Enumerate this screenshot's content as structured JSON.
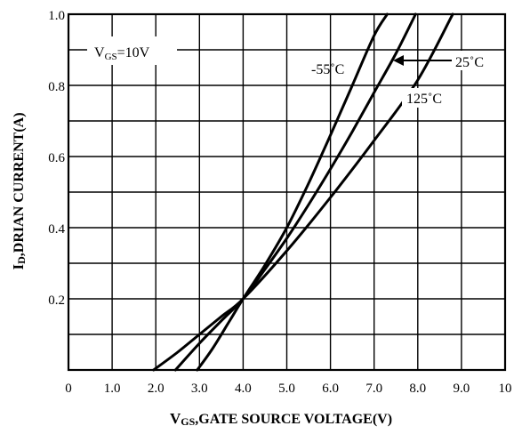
{
  "chart_data": {
    "type": "line",
    "title": "",
    "xlabel": "VGS,GATE SOURCE VOLTAGE(V)",
    "xlabel_main": "V",
    "xlabel_sub": "GS",
    "xlabel_rest": ",GATE SOURCE VOLTAGE(V)",
    "ylabel": "ID,DRIAN CURRENT(A)",
    "ylabel_main": "I",
    "ylabel_sub": "D",
    "ylabel_rest": ",DRIAN CURRENT(A)",
    "xlim": [
      0,
      10
    ],
    "ylim": [
      0,
      1.0
    ],
    "x_ticks": [
      0,
      1,
      2,
      3,
      4,
      5,
      6,
      7,
      8,
      9,
      10
    ],
    "x_tick_labels": [
      "0",
      "1.0",
      "2.0",
      "3.0",
      "4.0",
      "5.0",
      "6.0",
      "7.0",
      "8.0",
      "9.0",
      "10"
    ],
    "y_tick_labels": [
      {
        "value": 0.2,
        "label": "0.2"
      },
      {
        "value": 0.4,
        "label": "0.4"
      },
      {
        "value": 0.6,
        "label": "0.6"
      },
      {
        "value": 0.8,
        "label": "0.8"
      },
      {
        "value": 1.0,
        "label": "1.0"
      }
    ],
    "grid": true,
    "annotation": {
      "main": "V",
      "sub": "GS",
      "rest": "=10V"
    },
    "series": [
      {
        "name": "-55˚C",
        "label": "-55˚C",
        "x": [
          2.95,
          3.3,
          3.7,
          4.0,
          4.5,
          5.0,
          5.5,
          6.0,
          6.5,
          7.0,
          7.3
        ],
        "y": [
          0.0,
          0.06,
          0.14,
          0.2,
          0.295,
          0.4,
          0.525,
          0.66,
          0.8,
          0.94,
          1.0
        ]
      },
      {
        "name": "25˚C",
        "label": "25˚C",
        "x": [
          2.45,
          3.0,
          3.5,
          4.0,
          4.5,
          5.0,
          5.5,
          6.0,
          6.5,
          7.0,
          7.5,
          7.95
        ],
        "y": [
          0.0,
          0.075,
          0.138,
          0.2,
          0.283,
          0.37,
          0.465,
          0.565,
          0.67,
          0.78,
          0.89,
          1.0
        ]
      },
      {
        "name": "125˚C",
        "label": "125˚C",
        "x": [
          1.95,
          2.5,
          3.0,
          3.5,
          4.0,
          5.0,
          6.0,
          7.0,
          8.0,
          8.8
        ],
        "y": [
          0.0,
          0.05,
          0.1,
          0.15,
          0.2,
          0.335,
          0.485,
          0.645,
          0.815,
          1.0
        ]
      }
    ]
  }
}
